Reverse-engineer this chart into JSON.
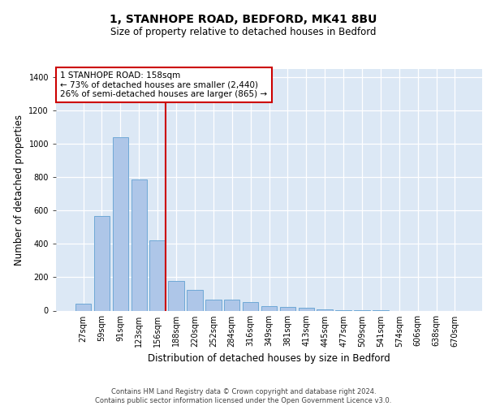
{
  "title": "1, STANHOPE ROAD, BEDFORD, MK41 8BU",
  "subtitle": "Size of property relative to detached houses in Bedford",
  "xlabel": "Distribution of detached houses by size in Bedford",
  "ylabel": "Number of detached properties",
  "bar_labels": [
    "27sqm",
    "59sqm",
    "91sqm",
    "123sqm",
    "156sqm",
    "188sqm",
    "220sqm",
    "252sqm",
    "284sqm",
    "316sqm",
    "349sqm",
    "381sqm",
    "413sqm",
    "445sqm",
    "477sqm",
    "509sqm",
    "541sqm",
    "574sqm",
    "606sqm",
    "638sqm",
    "670sqm"
  ],
  "bar_values": [
    40,
    570,
    1040,
    785,
    420,
    180,
    125,
    65,
    65,
    50,
    25,
    20,
    15,
    5,
    2,
    1,
    1,
    0,
    0,
    0,
    0
  ],
  "bar_color": "#aec6e8",
  "bar_edge_color": "#6fa8d6",
  "vline_x_index": 4,
  "vline_color": "#cc0000",
  "annotation_title": "1 STANHOPE ROAD: 158sqm",
  "annotation_line1": "← 73% of detached houses are smaller (2,440)",
  "annotation_line2": "26% of semi-detached houses are larger (865) →",
  "annotation_box_color": "#cc0000",
  "ylim": [
    0,
    1450
  ],
  "yticks": [
    0,
    200,
    400,
    600,
    800,
    1000,
    1200,
    1400
  ],
  "background_color": "#dce8f5",
  "footer_line1": "Contains HM Land Registry data © Crown copyright and database right 2024.",
  "footer_line2": "Contains public sector information licensed under the Open Government Licence v3.0.",
  "title_fontsize": 10,
  "subtitle_fontsize": 8.5,
  "tick_fontsize": 7,
  "ylabel_fontsize": 8.5,
  "xlabel_fontsize": 8.5,
  "annotation_fontsize": 7.5,
  "footer_fontsize": 6
}
